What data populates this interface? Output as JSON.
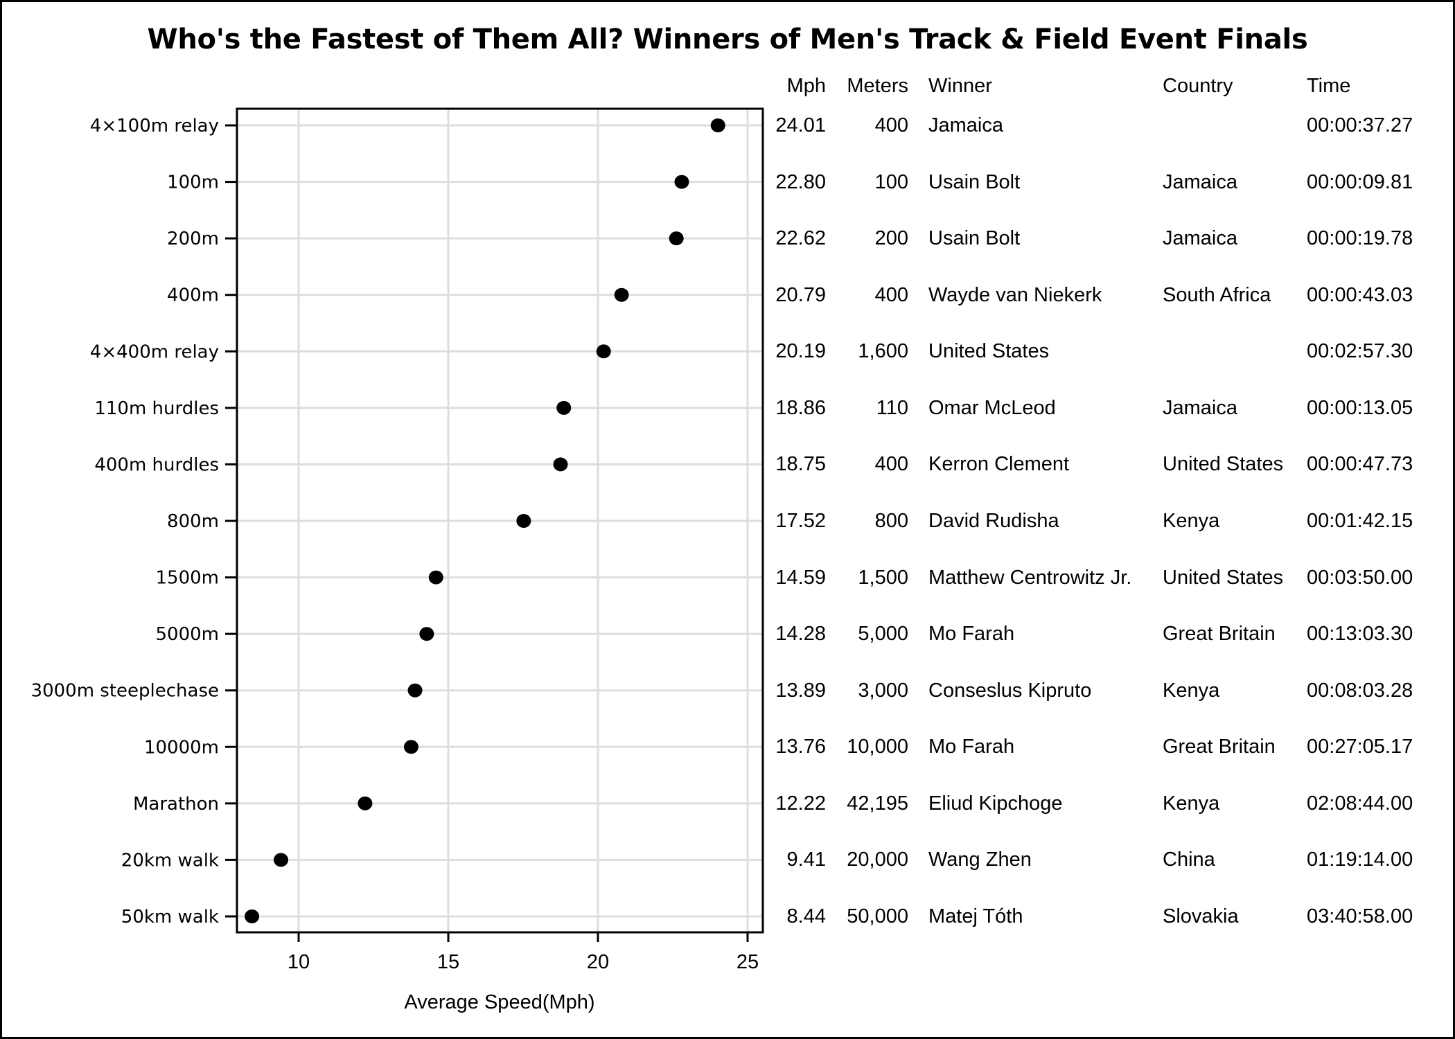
{
  "title": "Who's the Fastest of Them All? Winners of Men's Track & Field Event Finals",
  "table": {
    "headers": {
      "mph": "Mph",
      "meters": "Meters",
      "winner": "Winner",
      "country": "Country",
      "time": "Time"
    },
    "rows": [
      {
        "event": "4×100m relay",
        "mph": "24.01",
        "meters": "400",
        "winner": "Jamaica",
        "country": "",
        "time": "00:00:37.27"
      },
      {
        "event": "100m",
        "mph": "22.80",
        "meters": "100",
        "winner": "Usain Bolt",
        "country": "Jamaica",
        "time": "00:00:09.81"
      },
      {
        "event": "200m",
        "mph": "22.62",
        "meters": "200",
        "winner": "Usain Bolt",
        "country": "Jamaica",
        "time": "00:00:19.78"
      },
      {
        "event": "400m",
        "mph": "20.79",
        "meters": "400",
        "winner": "Wayde van Niekerk",
        "country": "South Africa",
        "time": "00:00:43.03"
      },
      {
        "event": "4×400m relay",
        "mph": "20.19",
        "meters": "1,600",
        "winner": "United States",
        "country": "",
        "time": "00:02:57.30"
      },
      {
        "event": "110m hurdles",
        "mph": "18.86",
        "meters": "110",
        "winner": "Omar McLeod",
        "country": "Jamaica",
        "time": "00:00:13.05"
      },
      {
        "event": "400m hurdles",
        "mph": "18.75",
        "meters": "400",
        "winner": "Kerron Clement",
        "country": "United States",
        "time": "00:00:47.73"
      },
      {
        "event": "800m",
        "mph": "17.52",
        "meters": "800",
        "winner": "David Rudisha",
        "country": "Kenya",
        "time": "00:01:42.15"
      },
      {
        "event": "1500m",
        "mph": "14.59",
        "meters": "1,500",
        "winner": "Matthew Centrowitz Jr.",
        "country": "United States",
        "time": "00:03:50.00"
      },
      {
        "event": "5000m",
        "mph": "14.28",
        "meters": "5,000",
        "winner": "Mo Farah",
        "country": "Great Britain",
        "time": "00:13:03.30"
      },
      {
        "event": "3000m steeplechase",
        "mph": "13.89",
        "meters": "3,000",
        "winner": "Conseslus Kipruto",
        "country": "Kenya",
        "time": "00:08:03.28"
      },
      {
        "event": "10000m",
        "mph": "13.76",
        "meters": "10,000",
        "winner": "Mo Farah",
        "country": "Great Britain",
        "time": "00:27:05.17"
      },
      {
        "event": "Marathon",
        "mph": "12.22",
        "meters": "42,195",
        "winner": "Eliud Kipchoge",
        "country": "Kenya",
        "time": "02:08:44.00"
      },
      {
        "event": "20km walk",
        "mph": "9.41",
        "meters": "20,000",
        "winner": "Wang Zhen",
        "country": "China",
        "time": "01:19:14.00"
      },
      {
        "event": "50km walk",
        "mph": "8.44",
        "meters": "50,000",
        "winner": "Matej Tóth",
        "country": "Slovakia",
        "time": "03:40:58.00"
      }
    ]
  },
  "colors": {
    "marker": "#000000",
    "grid": "#dddddd",
    "axis": "#000000",
    "background": "#ffffff"
  },
  "chart_data": {
    "type": "scatter",
    "subtype": "dot-plot",
    "title": "Who's the Fastest of Them All? Winners of Men's Track & Field Event Finals",
    "xlabel": "Average Speed(Mph)",
    "ylabel": "",
    "categories": [
      "4×100m relay",
      "100m",
      "200m",
      "400m",
      "4×400m relay",
      "110m hurdles",
      "400m hurdles",
      "800m",
      "1500m",
      "5000m",
      "3000m steeplechase",
      "10000m",
      "Marathon",
      "20km walk",
      "50km walk"
    ],
    "values": [
      24.01,
      22.8,
      22.62,
      20.79,
      20.19,
      18.86,
      18.75,
      17.52,
      14.59,
      14.28,
      13.89,
      13.76,
      12.22,
      9.41,
      8.44
    ],
    "xticks": [
      10,
      15,
      20,
      25
    ],
    "xlim": [
      7.95,
      25.6
    ],
    "grid": true,
    "legend": "none",
    "annotations": "Data table to the right with columns Mph, Meters, Winner, Country, Time"
  }
}
